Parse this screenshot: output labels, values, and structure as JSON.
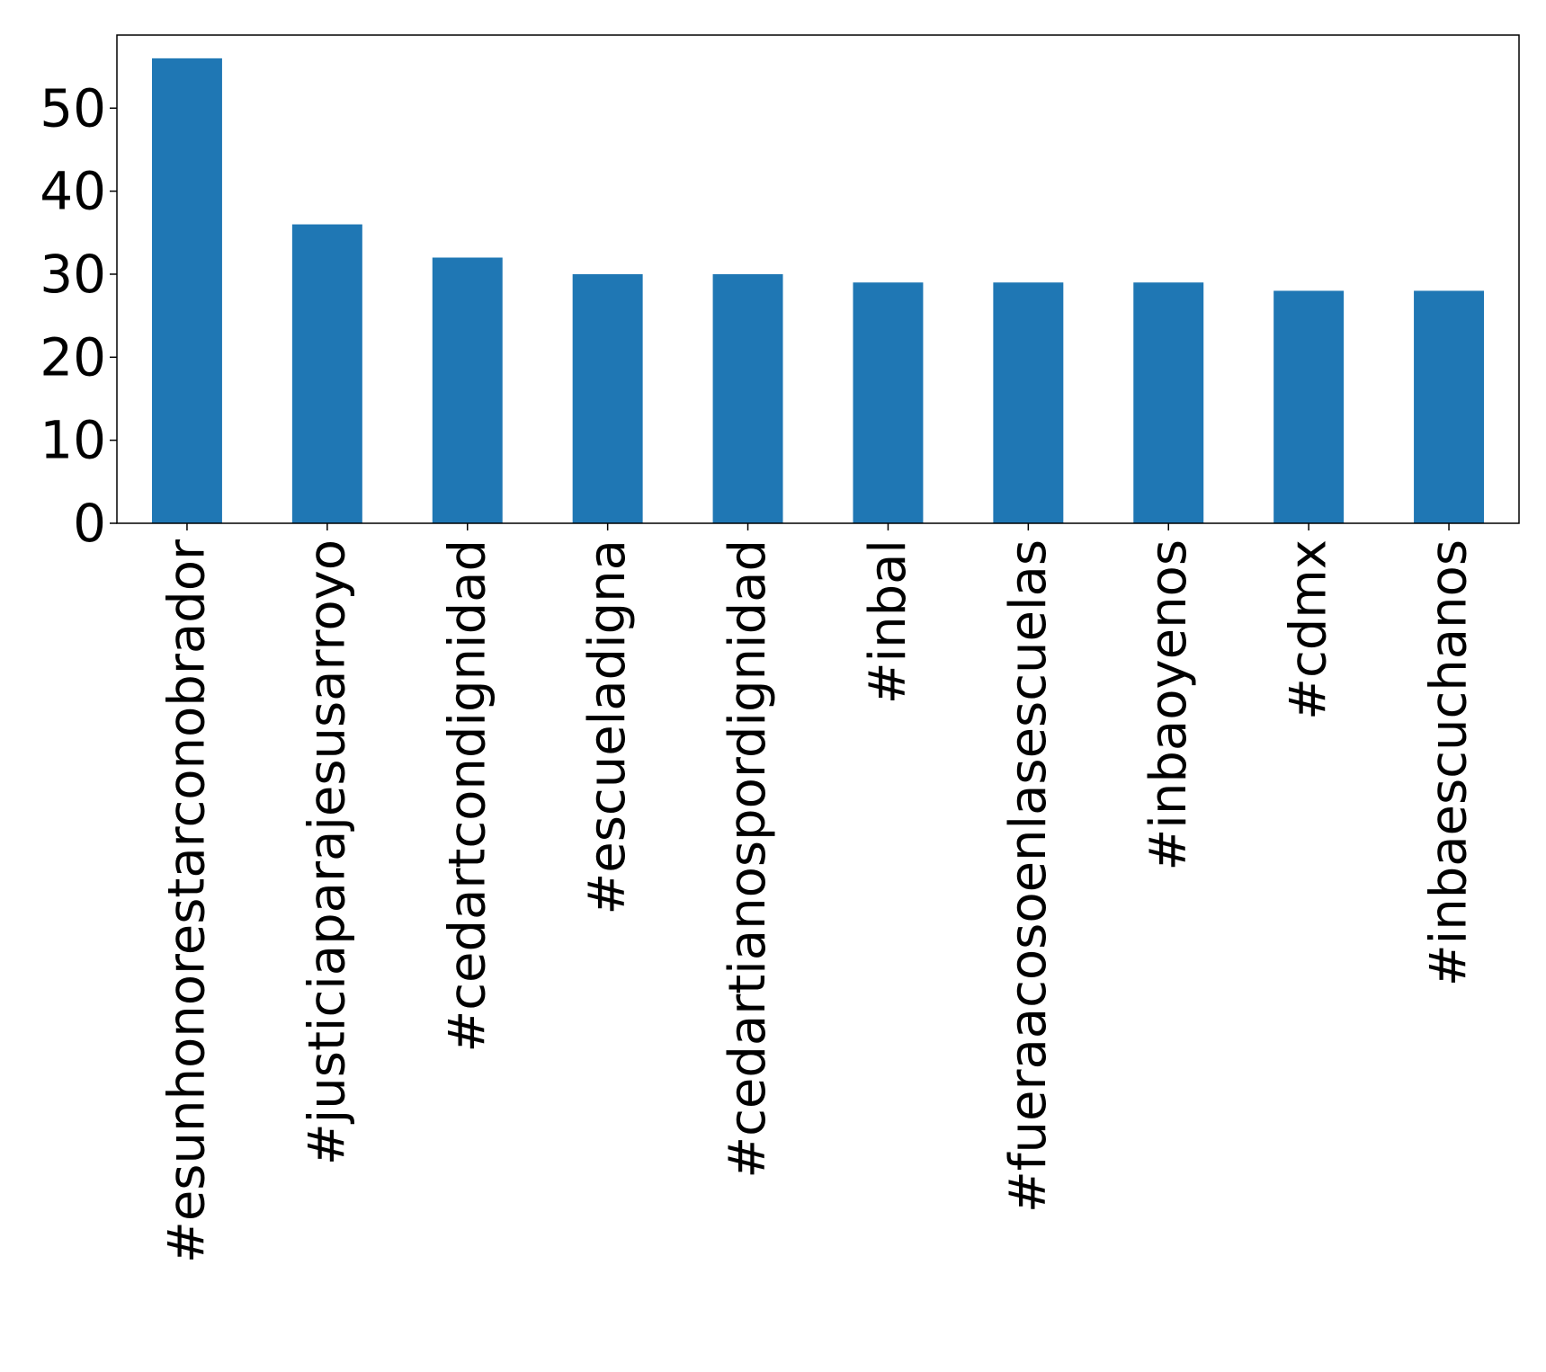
{
  "chart_data": {
    "type": "bar",
    "categories": [
      "#esunhonorestarconobrador",
      "#justiciaparajesusarroyo",
      "#cedartcondignidad",
      "#escueladigna",
      "#cedartianospordignidad",
      "#inbal",
      "#fueraacosoenlasescuelas",
      "#inbaoyenos",
      "#cdmx",
      "#inbaescuchanos"
    ],
    "values": [
      56,
      36,
      32,
      30,
      30,
      29,
      29,
      29,
      28,
      28
    ],
    "yticks": [
      0,
      10,
      20,
      30,
      40,
      50
    ],
    "ylim": [
      0,
      58.8
    ],
    "title": "",
    "xlabel": "",
    "ylabel": "",
    "grid": false,
    "bar_color": "#1f77b4"
  }
}
